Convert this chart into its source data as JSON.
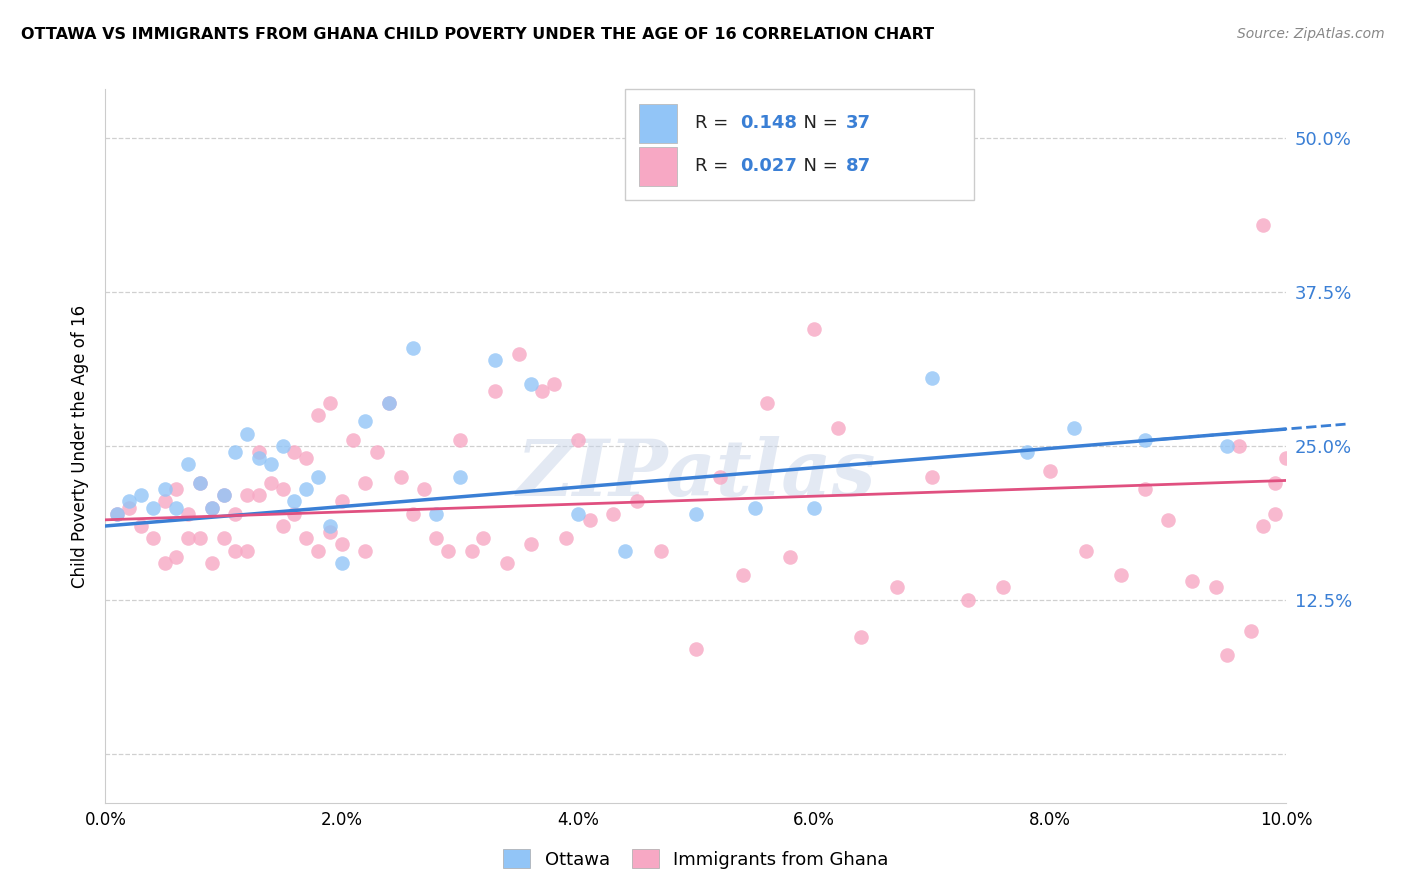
{
  "title": "OTTAWA VS IMMIGRANTS FROM GHANA CHILD POVERTY UNDER THE AGE OF 16 CORRELATION CHART",
  "source": "Source: ZipAtlas.com",
  "ylabel": "Child Poverty Under the Age of 16",
  "ottawa_R": "0.148",
  "ottawa_N": "37",
  "ghana_R": "0.027",
  "ghana_N": "87",
  "ottawa_color": "#92c5f7",
  "ghana_color": "#f7a8c4",
  "ottawa_line_color": "#3a7fd5",
  "ghana_line_color": "#e05080",
  "xlim": [
    0.0,
    0.1
  ],
  "ylim": [
    -0.04,
    0.54
  ],
  "yticks": [
    0.0,
    0.125,
    0.25,
    0.375,
    0.5
  ],
  "ytick_labels": [
    "",
    "12.5%",
    "25.0%",
    "37.5%",
    "50.0%"
  ],
  "xtick_positions": [
    0.0,
    0.02,
    0.04,
    0.06,
    0.08,
    0.1
  ],
  "xtick_labels": [
    "0.0%",
    "2.0%",
    "4.0%",
    "6.0%",
    "8.0%",
    "10.0%"
  ],
  "ottawa_x": [
    0.001,
    0.002,
    0.003,
    0.004,
    0.005,
    0.006,
    0.007,
    0.008,
    0.009,
    0.01,
    0.011,
    0.012,
    0.013,
    0.014,
    0.015,
    0.016,
    0.017,
    0.018,
    0.019,
    0.02,
    0.022,
    0.024,
    0.026,
    0.028,
    0.03,
    0.033,
    0.036,
    0.04,
    0.044,
    0.05,
    0.055,
    0.06,
    0.07,
    0.078,
    0.082,
    0.088,
    0.095
  ],
  "ottawa_y": [
    0.195,
    0.205,
    0.21,
    0.2,
    0.215,
    0.2,
    0.235,
    0.22,
    0.2,
    0.21,
    0.245,
    0.26,
    0.24,
    0.235,
    0.25,
    0.205,
    0.215,
    0.225,
    0.185,
    0.155,
    0.27,
    0.285,
    0.33,
    0.195,
    0.225,
    0.32,
    0.3,
    0.195,
    0.165,
    0.195,
    0.2,
    0.2,
    0.305,
    0.245,
    0.265,
    0.255,
    0.25
  ],
  "ghana_x": [
    0.001,
    0.002,
    0.003,
    0.004,
    0.005,
    0.005,
    0.006,
    0.006,
    0.007,
    0.007,
    0.008,
    0.008,
    0.009,
    0.009,
    0.01,
    0.01,
    0.011,
    0.011,
    0.012,
    0.012,
    0.013,
    0.013,
    0.014,
    0.015,
    0.015,
    0.016,
    0.016,
    0.017,
    0.017,
    0.018,
    0.018,
    0.019,
    0.019,
    0.02,
    0.02,
    0.021,
    0.022,
    0.022,
    0.023,
    0.024,
    0.025,
    0.026,
    0.027,
    0.028,
    0.029,
    0.03,
    0.031,
    0.032,
    0.033,
    0.034,
    0.035,
    0.036,
    0.037,
    0.038,
    0.039,
    0.04,
    0.041,
    0.043,
    0.045,
    0.047,
    0.05,
    0.052,
    0.054,
    0.056,
    0.058,
    0.06,
    0.062,
    0.064,
    0.067,
    0.07,
    0.073,
    0.076,
    0.08,
    0.083,
    0.086,
    0.088,
    0.09,
    0.092,
    0.094,
    0.095,
    0.096,
    0.097,
    0.098,
    0.098,
    0.099,
    0.099,
    0.1
  ],
  "ghana_y": [
    0.195,
    0.2,
    0.185,
    0.175,
    0.155,
    0.205,
    0.16,
    0.215,
    0.195,
    0.175,
    0.175,
    0.22,
    0.155,
    0.2,
    0.175,
    0.21,
    0.195,
    0.165,
    0.165,
    0.21,
    0.245,
    0.21,
    0.22,
    0.185,
    0.215,
    0.195,
    0.245,
    0.24,
    0.175,
    0.165,
    0.275,
    0.18,
    0.285,
    0.205,
    0.17,
    0.255,
    0.22,
    0.165,
    0.245,
    0.285,
    0.225,
    0.195,
    0.215,
    0.175,
    0.165,
    0.255,
    0.165,
    0.175,
    0.295,
    0.155,
    0.325,
    0.17,
    0.295,
    0.3,
    0.175,
    0.255,
    0.19,
    0.195,
    0.205,
    0.165,
    0.085,
    0.225,
    0.145,
    0.285,
    0.16,
    0.345,
    0.265,
    0.095,
    0.135,
    0.225,
    0.125,
    0.135,
    0.23,
    0.165,
    0.145,
    0.215,
    0.19,
    0.14,
    0.135,
    0.08,
    0.25,
    0.1,
    0.185,
    0.43,
    0.195,
    0.22,
    0.24
  ]
}
